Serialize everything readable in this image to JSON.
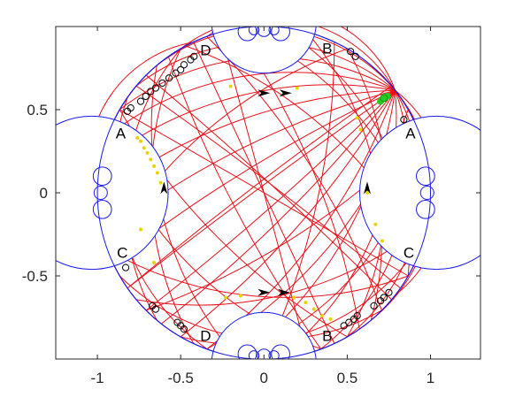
{
  "chart_data": {
    "type": "scatter",
    "title": "",
    "xlabel": "",
    "ylabel": "",
    "xlim": [
      -1.25,
      1.3
    ],
    "ylim": [
      -1.0,
      1.0
    ],
    "xticks": [
      -1,
      -0.5,
      0,
      0.5,
      1
    ],
    "xtick_labels": [
      "-1",
      "-0.5",
      "0",
      "0.5",
      "1"
    ],
    "yticks": [
      -0.5,
      0,
      0.5
    ],
    "ytick_labels": [
      "-0.5",
      "0",
      "0.5"
    ],
    "grid": false,
    "legend": "none",
    "disk": {
      "center": [
        0,
        0
      ],
      "radius": 1
    },
    "boundary_arcs": [
      {
        "side": "top",
        "center": [
          0,
          1.035
        ],
        "radius": 0.315
      },
      {
        "side": "bottom",
        "center": [
          0,
          -1.035
        ],
        "radius": 0.315
      },
      {
        "side": "left",
        "center": [
          -1.035,
          0
        ],
        "radius": 0.46
      },
      {
        "side": "right",
        "center": [
          1.035,
          0
        ],
        "radius": 0.46
      }
    ],
    "vertex_labels": [
      {
        "text": "D",
        "x": -0.35,
        "y": 0.86
      },
      {
        "text": "B",
        "x": 0.38,
        "y": 0.87
      },
      {
        "text": "A",
        "x": -0.86,
        "y": 0.36
      },
      {
        "text": "A",
        "x": 0.88,
        "y": 0.36
      },
      {
        "text": "C",
        "x": -0.85,
        "y": -0.36
      },
      {
        "text": "C",
        "x": 0.87,
        "y": -0.36
      },
      {
        "text": "D",
        "x": -0.35,
        "y": -0.86
      },
      {
        "text": "B",
        "x": 0.38,
        "y": -0.86
      }
    ],
    "side_arrows": [
      {
        "x": 0.0,
        "y": 0.6,
        "dir": "right"
      },
      {
        "x": 0.13,
        "y": 0.6,
        "dir": "right"
      },
      {
        "x": -0.6,
        "y": 0.03,
        "dir": "up"
      },
      {
        "x": 0.62,
        "y": 0.03,
        "dir": "up"
      },
      {
        "x": 0.0,
        "y": -0.6,
        "dir": "right"
      },
      {
        "x": 0.12,
        "y": -0.6,
        "dir": "right"
      }
    ],
    "orbit_start": {
      "x": 0.72,
      "y": 0.57
    },
    "geodesics": {
      "color": "#e8101a",
      "count": 56
    },
    "series": [
      {
        "marker": "circle",
        "color": "#000000",
        "points": [
          [
            -0.82,
            0.49
          ],
          [
            -0.8,
            0.51
          ],
          [
            -0.74,
            0.55
          ],
          [
            -0.71,
            0.58
          ],
          [
            -0.68,
            0.61
          ],
          [
            -0.65,
            0.63
          ],
          [
            -0.61,
            0.66
          ],
          [
            -0.57,
            0.69
          ],
          [
            -0.53,
            0.72
          ],
          [
            -0.5,
            0.74
          ],
          [
            -0.48,
            0.77
          ],
          [
            -0.44,
            0.8
          ],
          [
            -0.42,
            0.82
          ],
          [
            0.52,
            0.85
          ],
          [
            0.55,
            0.82
          ],
          [
            0.84,
            0.44
          ],
          [
            -0.83,
            -0.45
          ],
          [
            -0.67,
            -0.68
          ],
          [
            -0.65,
            -0.7
          ],
          [
            -0.52,
            -0.78
          ],
          [
            -0.5,
            -0.8
          ],
          [
            -0.48,
            -0.82
          ],
          [
            0.48,
            -0.8
          ],
          [
            0.51,
            -0.78
          ],
          [
            0.54,
            -0.76
          ],
          [
            0.56,
            -0.74
          ],
          [
            0.66,
            -0.68
          ],
          [
            0.7,
            -0.65
          ],
          [
            0.72,
            -0.63
          ],
          [
            0.75,
            -0.6
          ]
        ]
      },
      {
        "marker": "dot",
        "color": "#e6d400",
        "points": [
          [
            -0.76,
            0.33
          ],
          [
            -0.74,
            0.31
          ],
          [
            -0.72,
            0.27
          ],
          [
            -0.7,
            0.24
          ],
          [
            -0.68,
            0.2
          ],
          [
            -0.66,
            0.16
          ],
          [
            -0.64,
            0.12
          ],
          [
            -0.62,
            0.06
          ],
          [
            -0.2,
            0.64
          ],
          [
            0.2,
            0.63
          ],
          [
            0.56,
            0.45
          ],
          [
            0.58,
            0.38
          ],
          [
            0.62,
            0.0
          ],
          [
            0.67,
            -0.19
          ],
          [
            0.71,
            -0.29
          ],
          [
            -0.74,
            -0.22
          ],
          [
            -0.66,
            -0.42
          ],
          [
            -0.23,
            -0.63
          ],
          [
            -0.14,
            -0.62
          ],
          [
            0.18,
            -0.63
          ],
          [
            0.25,
            -0.66
          ],
          [
            0.3,
            -0.7
          ],
          [
            0.35,
            -0.74
          ],
          [
            0.4,
            -0.76
          ]
        ]
      },
      {
        "marker": "dot",
        "color": "#22cc22",
        "points": [
          [
            0.7,
            0.55
          ],
          [
            0.72,
            0.57
          ],
          [
            0.74,
            0.58
          ]
        ]
      }
    ]
  }
}
